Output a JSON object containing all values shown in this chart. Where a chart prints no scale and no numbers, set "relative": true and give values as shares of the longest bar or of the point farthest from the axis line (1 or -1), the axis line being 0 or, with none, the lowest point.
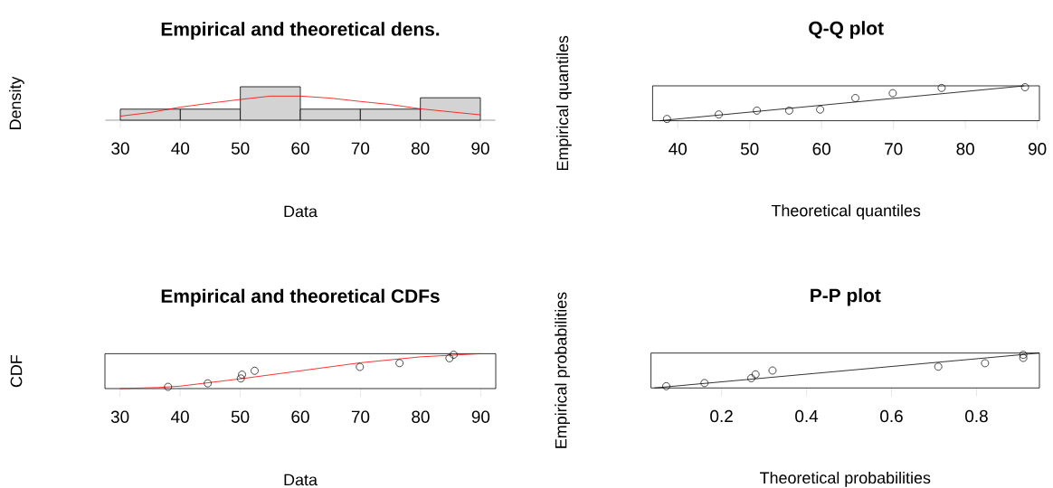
{
  "chart_data": [
    {
      "type": "histogram",
      "title": "Empirical and theoretical dens.",
      "xlabel": "Data",
      "ylabel": "Density",
      "relative": true,
      "xlim": [
        27.5,
        92.5
      ],
      "xticks": [
        30,
        40,
        50,
        60,
        70,
        80,
        90
      ],
      "series": [
        {
          "type": "histogram",
          "color": "#d3d3d3",
          "bins": [
            30,
            40,
            50,
            60,
            70,
            80,
            90
          ],
          "values": [
            0.33,
            0.33,
            1,
            0.33,
            0.33,
            0.67
          ]
        },
        {
          "type": "line",
          "color": "#ff0000",
          "x": [
            30,
            35,
            40,
            45,
            50,
            55,
            60,
            65,
            70,
            75,
            80,
            85,
            90
          ],
          "values": [
            0.12,
            0.23,
            0.39,
            0.51,
            0.62,
            0.72,
            0.72,
            0.66,
            0.56,
            0.47,
            0.34,
            0.25,
            0.16
          ]
        }
      ]
    },
    {
      "type": "scatter",
      "title": "Q-Q plot",
      "xlabel": "Theoretical quantiles",
      "ylabel": "Empirical quantiles",
      "relative": true,
      "xlim": [
        36.5,
        90.3
      ],
      "xticks": [
        40,
        50,
        60,
        70,
        80,
        90
      ],
      "series": [
        {
          "type": "scatter",
          "color": "#000000",
          "marker": "circle",
          "x": [
            38.5,
            45.7,
            51.0,
            55.5,
            59.8,
            64.7,
            69.9,
            76.7,
            88.3
          ],
          "values": [
            0.05,
            0.18,
            0.29,
            0.29,
            0.32,
            0.65,
            0.79,
            0.94,
            0.96
          ]
        },
        {
          "type": "line",
          "color": "#000000",
          "x": [
            37.5,
            88.2
          ],
          "values": [
            0,
            1
          ]
        }
      ]
    },
    {
      "type": "scatter",
      "title": "Empirical and theoretical CDFs",
      "xlabel": "Data",
      "ylabel": "CDF",
      "relative": true,
      "xlim": [
        27.5,
        92.5
      ],
      "xticks": [
        30,
        40,
        50,
        60,
        70,
        80,
        90
      ],
      "series": [
        {
          "type": "scatter",
          "color": "#000000",
          "marker": "circle",
          "x": [
            38.0,
            44.6,
            50.1,
            50.3,
            52.4,
            69.9,
            76.5,
            84.8,
            85.5
          ],
          "values": [
            0.05,
            0.15,
            0.29,
            0.4,
            0.51,
            0.62,
            0.73,
            0.87,
            0.97
          ]
        },
        {
          "type": "line",
          "color": "#ff0000",
          "x": [
            30,
            36.3,
            40,
            50.5,
            70,
            80,
            90
          ],
          "values": [
            0,
            0.03,
            0.07,
            0.29,
            0.74,
            0.91,
            1
          ]
        }
      ]
    },
    {
      "type": "scatter",
      "title": "P-P plot",
      "xlabel": "Theoretical probabilities",
      "ylabel": "Empirical probabilities",
      "relative": true,
      "xlim": [
        0.034,
        0.948
      ],
      "xticks": [
        0.2,
        0.4,
        0.6,
        0.8
      ],
      "series": [
        {
          "type": "scatter",
          "color": "#000000",
          "marker": "circle",
          "x": [
            0.07,
            0.16,
            0.27,
            0.28,
            0.32,
            0.71,
            0.82,
            0.91,
            0.91
          ],
          "values": [
            0.05,
            0.14,
            0.28,
            0.39,
            0.5,
            0.61,
            0.71,
            0.86,
            0.95
          ]
        },
        {
          "type": "line",
          "color": "#000000",
          "x": [
            0.042,
            0.948
          ],
          "values": [
            0,
            1
          ]
        }
      ]
    }
  ]
}
